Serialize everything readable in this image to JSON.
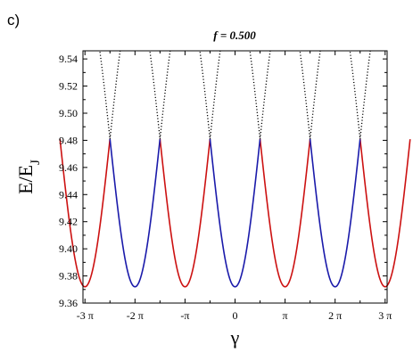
{
  "panel_label": "c)",
  "chart_data": {
    "type": "line",
    "title": "f = 0.500",
    "xlabel": "γ",
    "ylabel": "E/E_J",
    "xlim": [
      -9.55,
      9.55
    ],
    "ylim": [
      9.36,
      9.546
    ],
    "x_ticks": [
      {
        "value": -9.4248,
        "label": "-3 π"
      },
      {
        "value": -6.2832,
        "label": "-2 π"
      },
      {
        "value": -3.1416,
        "label": "-π"
      },
      {
        "value": 0,
        "label": "0"
      },
      {
        "value": 3.1416,
        "label": "π"
      },
      {
        "value": 6.2832,
        "label": "2 π"
      },
      {
        "value": 9.4248,
        "label": "3 π"
      }
    ],
    "y_ticks": [
      9.36,
      9.38,
      9.4,
      9.42,
      9.44,
      9.46,
      9.48,
      9.5,
      9.52,
      9.54
    ],
    "y_tick_labels": [
      "9.36",
      "9.38",
      "9.40",
      "9.42",
      "9.44",
      "9.46",
      "9.48",
      "9.50",
      "9.52",
      "9.54"
    ],
    "curve_model": {
      "minimum": 9.372,
      "crossing_value": 9.481,
      "period": 6.2832,
      "red_minima_at": [
        -9.4248,
        -3.1416,
        3.1416,
        9.4248
      ],
      "blue_minima_at": [
        -6.2832,
        0,
        6.2832
      ],
      "crossings_at": [
        -7.854,
        -4.7124,
        -1.5708,
        1.5708,
        4.7124,
        7.854
      ]
    },
    "series": [
      {
        "color": "#cc1111",
        "style": "solid"
      },
      {
        "color": "#1a1aaa",
        "style": "solid"
      },
      {
        "color": "#000000",
        "style": "dotted"
      }
    ],
    "grid": false,
    "legend": "none"
  }
}
